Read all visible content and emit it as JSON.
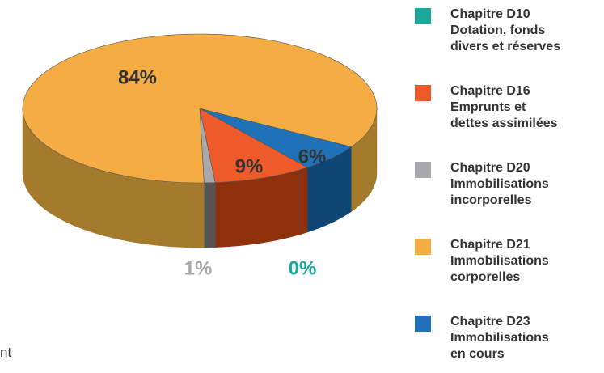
{
  "chart_data": {
    "type": "pie",
    "categories": [
      "Chapitre D10\nDotation, fonds\ndivers et réserves",
      "Chapitre D16\nEmprunts et\ndettes assimilées",
      "Chapitre D20\nImmobilisations\nincorporelles",
      "Chapitre D21\nImmobilisations\ncorporelles",
      "Chapitre D23\nImmobilisations\nen cours"
    ],
    "values": [
      0,
      9,
      1,
      84,
      6
    ],
    "value_labels": [
      "0%",
      "9%",
      "1%",
      "84%",
      "6%"
    ],
    "colors": [
      "#1aaa9c",
      "#ef5a2b",
      "#a9a9ab",
      "#f5ad43",
      "#1f72b8"
    ],
    "annotation": "nt"
  }
}
